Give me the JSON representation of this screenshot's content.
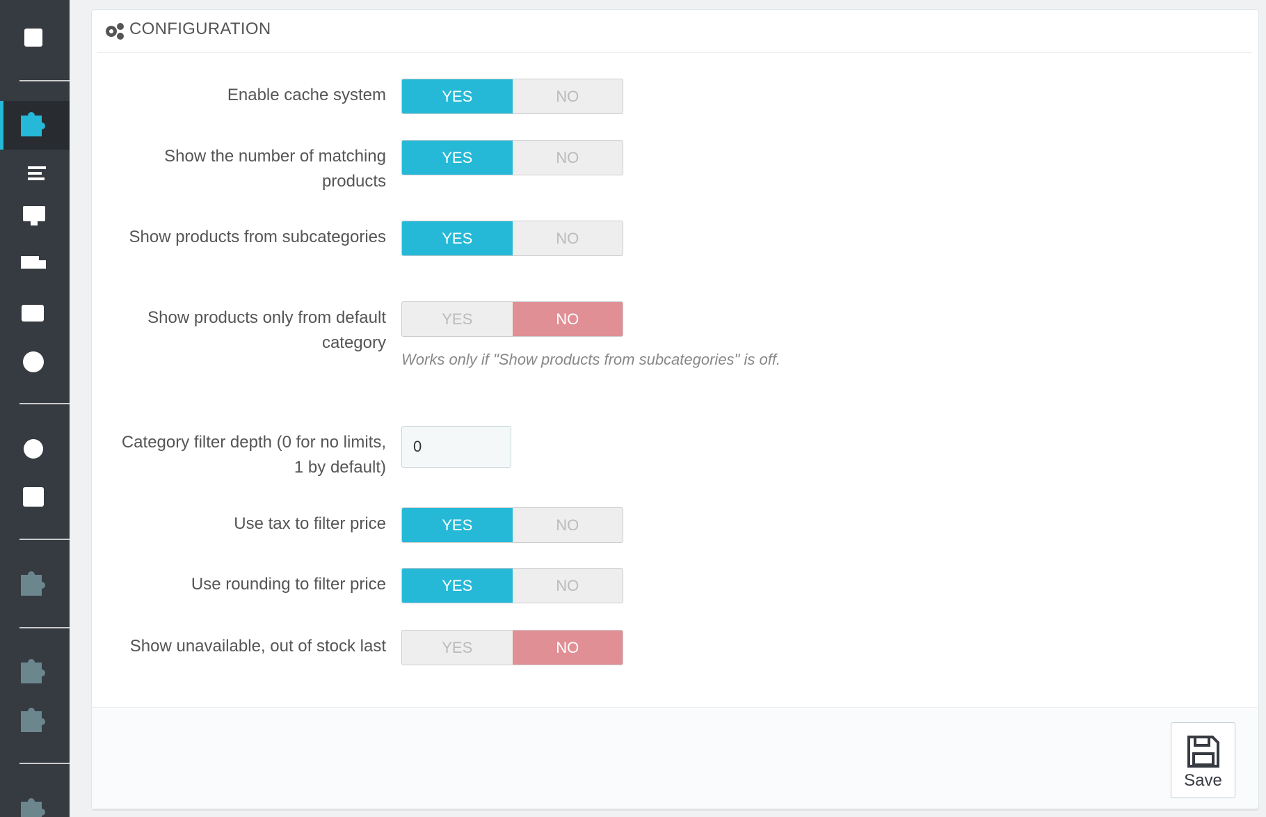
{
  "header": {
    "title": "CONFIGURATION"
  },
  "fields": [
    {
      "label": "Enable cache system",
      "kind": "switch",
      "yes": "YES",
      "no": "NO",
      "on": true
    },
    {
      "label": "Show the number of matching products",
      "kind": "switch",
      "yes": "YES",
      "no": "NO",
      "on": true
    },
    {
      "label": "Show products from subcategories",
      "kind": "switch",
      "yes": "YES",
      "no": "NO",
      "on": true
    },
    {
      "label": "Show products only from default category",
      "kind": "switch",
      "yes": "YES",
      "no": "NO",
      "on": false,
      "help": "Works only if \"Show products from subcategories\" is off."
    },
    {
      "label": "Category filter depth (0 for no limits, 1 by default)",
      "kind": "input",
      "value": "0"
    },
    {
      "label": "Use tax to filter price",
      "kind": "switch",
      "yes": "YES",
      "no": "NO",
      "on": true
    },
    {
      "label": "Use rounding to filter price",
      "kind": "switch",
      "yes": "YES",
      "no": "NO",
      "on": true
    },
    {
      "label": "Show unavailable, out of stock last",
      "kind": "switch",
      "yes": "YES",
      "no": "NO",
      "on": false
    }
  ],
  "footer": {
    "save": "Save"
  }
}
